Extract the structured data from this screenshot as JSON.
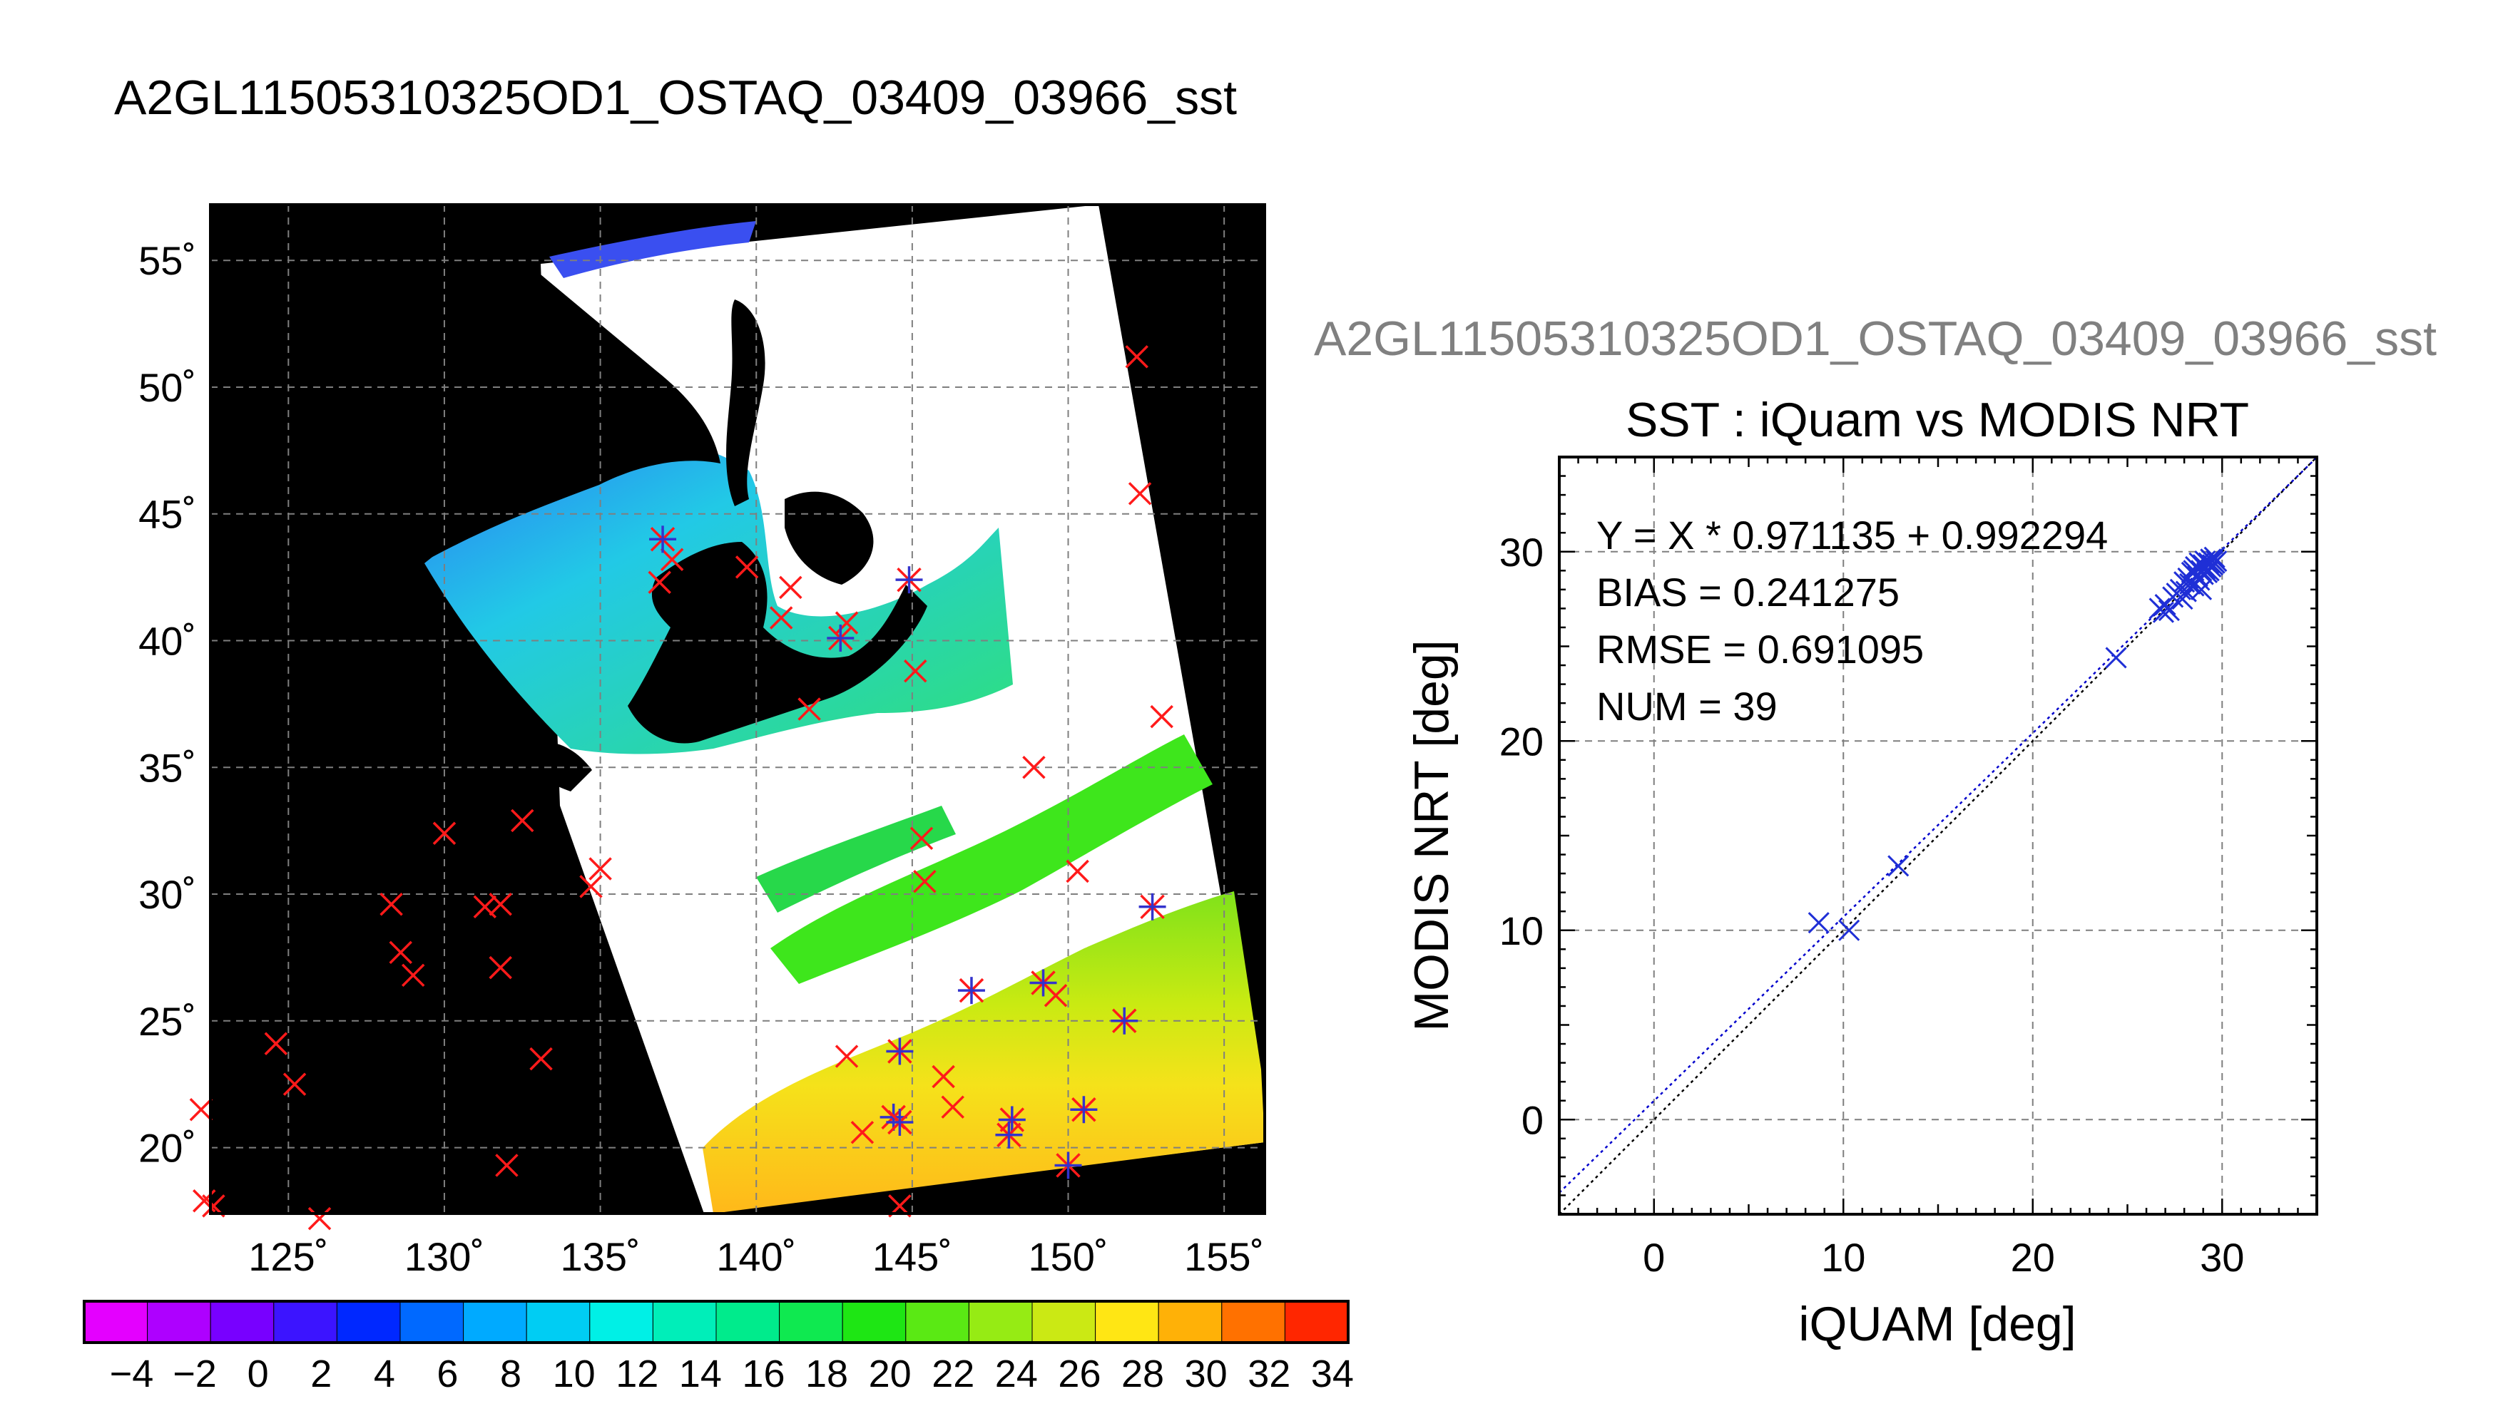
{
  "figure_title": "A2GL11505310325OD1_OSTAQ_03409_03966_sst",
  "colors": {
    "ocean_fill": "#ffffff",
    "land_mask": "#000000",
    "grid": "#7f7f7f",
    "buoy_marker": "#ff1a1a",
    "matched_marker": "#3333cc",
    "fit_line": "#0000cc",
    "one_to_one_line": "#000000",
    "scatter_marker": "#1f2fd6",
    "side_title": "#808080"
  },
  "chart_data": [
    {
      "type": "map",
      "title": "A2GL11505310325OD1_OSTAQ_03409_03966_sst",
      "xlim": [
        122.5,
        156.3
      ],
      "ylim": [
        17.4,
        57.2
      ],
      "grid": true,
      "x_ticks": [
        125,
        130,
        135,
        140,
        145,
        150,
        155
      ],
      "y_ticks": [
        20,
        25,
        30,
        35,
        40,
        45,
        50,
        55
      ],
      "x_tick_labels": [
        "125˚",
        "130˚",
        "135˚",
        "140˚",
        "145˚",
        "150˚",
        "155˚"
      ],
      "y_tick_labels": [
        "20˚",
        "25˚",
        "30˚",
        "35˚",
        "40˚",
        "45˚",
        "50˚",
        "55˚"
      ],
      "buoy_points": [
        [
          122.2,
          21.5
        ],
        [
          122.6,
          17.7
        ],
        [
          124.6,
          24.1
        ],
        [
          125.2,
          22.5
        ],
        [
          126.0,
          17.2
        ],
        [
          128.3,
          29.6
        ],
        [
          128.6,
          27.7
        ],
        [
          129.0,
          26.8
        ],
        [
          130.0,
          32.4
        ],
        [
          131.3,
          29.5
        ],
        [
          131.8,
          29.6
        ],
        [
          131.8,
          27.1
        ],
        [
          132.0,
          19.3
        ],
        [
          132.5,
          32.9
        ],
        [
          133.1,
          23.5
        ],
        [
          134.7,
          30.3
        ],
        [
          135.0,
          31.0
        ],
        [
          136.9,
          42.3
        ],
        [
          137.3,
          43.2
        ],
        [
          139.7,
          42.9
        ],
        [
          140.8,
          40.9
        ],
        [
          141.1,
          42.1
        ],
        [
          141.7,
          37.3
        ],
        [
          142.9,
          40.7
        ],
        [
          142.9,
          23.6
        ],
        [
          143.4,
          20.6
        ],
        [
          145.1,
          38.8
        ],
        [
          145.3,
          32.2
        ],
        [
          145.4,
          30.5
        ],
        [
          146.0,
          22.8
        ],
        [
          146.3,
          21.6
        ],
        [
          148.9,
          35.0
        ],
        [
          149.6,
          26.0
        ],
        [
          150.3,
          30.9
        ],
        [
          152.2,
          51.2
        ],
        [
          152.3,
          45.8
        ],
        [
          153.0,
          37.0
        ],
        [
          122.3,
          17.9
        ],
        [
          144.6,
          17.7
        ]
      ],
      "matched_points": [
        [
          137.0,
          44.0
        ],
        [
          144.9,
          42.4
        ],
        [
          142.7,
          40.1
        ],
        [
          152.7,
          29.5
        ],
        [
          146.9,
          26.2
        ],
        [
          149.2,
          26.5
        ],
        [
          151.8,
          25.0
        ],
        [
          144.6,
          23.8
        ],
        [
          144.4,
          21.2
        ],
        [
          144.6,
          21.0
        ],
        [
          148.2,
          21.1
        ],
        [
          148.1,
          20.5
        ],
        [
          150.5,
          21.5
        ],
        [
          150.0,
          19.3
        ]
      ],
      "colorbar": {
        "vmin": -5,
        "vmax": 35,
        "step": 2,
        "tick_labels": [
          "−4",
          "−2",
          "0",
          "2",
          "4",
          "6",
          "8",
          "10",
          "12",
          "14",
          "16",
          "18",
          "20",
          "22",
          "24",
          "26",
          "28",
          "30",
          "32",
          "34"
        ]
      }
    },
    {
      "type": "scatter",
      "figure_label": "A2GL11505310325OD1_OSTAQ_03409_03966_sst",
      "title": "SST : iQuam vs MODIS NRT",
      "xlabel": "iQUAM [deg]",
      "ylabel": "MODIS NRT [deg]",
      "xlim": [
        -5,
        35
      ],
      "ylim": [
        -5,
        35
      ],
      "grid": true,
      "x_ticks": [
        0,
        10,
        20,
        30
      ],
      "y_ticks": [
        0,
        10,
        20,
        30
      ],
      "x_tick_labels": [
        "0",
        "10",
        "20",
        "30"
      ],
      "y_tick_labels": [
        "0",
        "10",
        "20",
        "30"
      ],
      "stats": [
        "Y = X * 0.971135 + 0.992294",
        "BIAS = 0.241275",
        "RMSE = 0.691095",
        "NUM = 39"
      ],
      "fit": {
        "slope": 0.971135,
        "intercept": 0.992294
      },
      "points": [
        [
          8.7,
          10.4
        ],
        [
          10.3,
          10.0
        ],
        [
          12.9,
          13.4
        ],
        [
          24.4,
          24.4
        ],
        [
          26.7,
          27.0
        ],
        [
          26.9,
          26.8
        ],
        [
          27.0,
          27.2
        ],
        [
          27.2,
          26.9
        ],
        [
          27.4,
          27.6
        ],
        [
          27.6,
          27.8
        ],
        [
          27.8,
          28.0
        ],
        [
          28.0,
          28.4
        ],
        [
          28.1,
          27.9
        ],
        [
          28.2,
          28.6
        ],
        [
          28.3,
          28.3
        ],
        [
          28.4,
          28.9
        ],
        [
          28.5,
          29.0
        ],
        [
          28.5,
          28.2
        ],
        [
          28.6,
          29.2
        ],
        [
          28.7,
          28.7
        ],
        [
          28.8,
          29.4
        ],
        [
          28.8,
          28.5
        ],
        [
          28.9,
          29.0
        ],
        [
          29.0,
          29.3
        ],
        [
          29.0,
          28.8
        ],
        [
          29.1,
          29.5
        ],
        [
          29.1,
          29.1
        ],
        [
          29.2,
          28.9
        ],
        [
          29.3,
          29.4
        ],
        [
          29.3,
          29.0
        ],
        [
          29.4,
          29.6
        ],
        [
          29.4,
          29.2
        ],
        [
          29.5,
          29.3
        ],
        [
          29.5,
          29.5
        ],
        [
          29.6,
          29.7
        ],
        [
          29.6,
          29.4
        ],
        [
          29.7,
          29.5
        ],
        [
          28.9,
          28.0
        ],
        [
          27.9,
          27.5
        ]
      ]
    }
  ]
}
